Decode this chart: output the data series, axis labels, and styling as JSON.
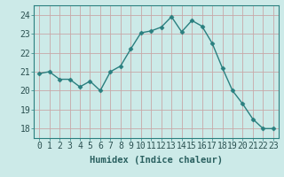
{
  "x": [
    0,
    1,
    2,
    3,
    4,
    5,
    6,
    7,
    8,
    9,
    10,
    11,
    12,
    13,
    14,
    15,
    16,
    17,
    18,
    19,
    20,
    21,
    22,
    23
  ],
  "y": [
    20.9,
    21.0,
    20.6,
    20.6,
    20.2,
    20.5,
    20.0,
    21.0,
    21.3,
    22.2,
    23.05,
    23.15,
    23.35,
    23.9,
    23.1,
    23.7,
    23.4,
    22.5,
    21.2,
    20.0,
    19.3,
    18.5,
    18.0,
    18.0
  ],
  "line_color": "#2a7f7f",
  "marker": "D",
  "marker_size": 2.5,
  "bg_color": "#cceae8",
  "grid_color": "#b0d8d4",
  "xlabel": "Humidex (Indice chaleur)",
  "xlabel_fontsize": 7.5,
  "tick_fontsize": 7,
  "ylim": [
    17.5,
    24.5
  ],
  "yticks": [
    18,
    19,
    20,
    21,
    22,
    23,
    24
  ],
  "xticks": [
    0,
    1,
    2,
    3,
    4,
    5,
    6,
    7,
    8,
    9,
    10,
    11,
    12,
    13,
    14,
    15,
    16,
    17,
    18,
    19,
    20,
    21,
    22,
    23
  ]
}
